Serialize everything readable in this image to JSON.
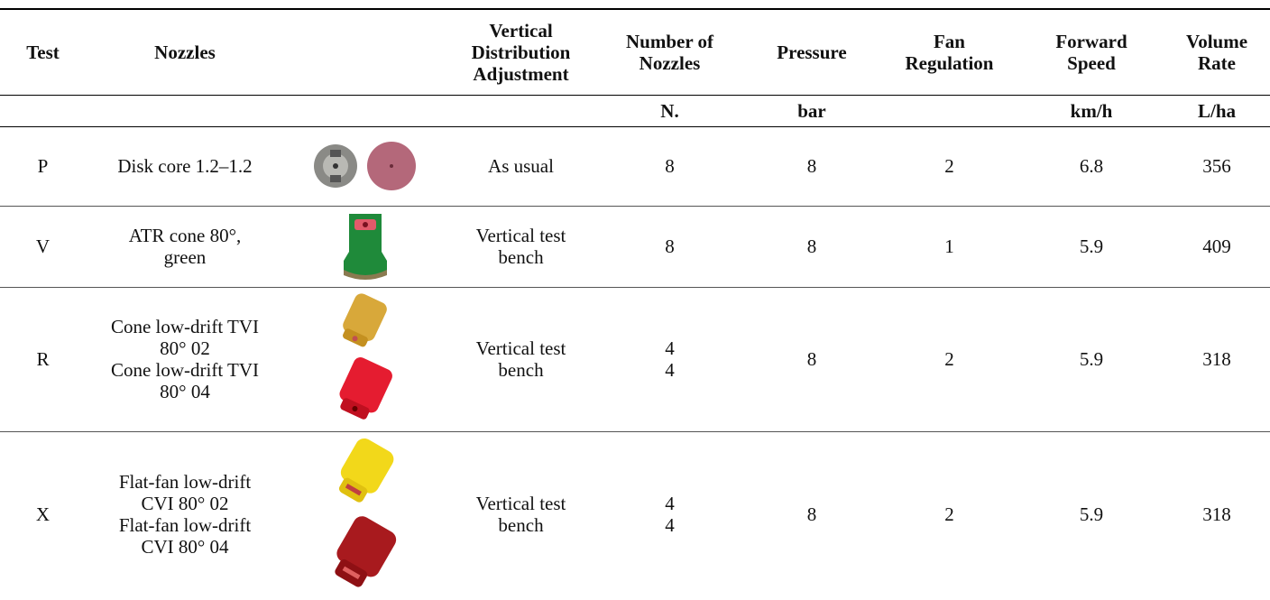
{
  "table": {
    "columns": [
      {
        "header": [
          "Test"
        ]
      },
      {
        "header": [
          "Nozzles"
        ]
      },
      {
        "header": [
          "Vertical",
          "Distribution",
          "Adjustment"
        ]
      },
      {
        "header": [
          "Number of",
          "Nozzles"
        ],
        "unit": "N."
      },
      {
        "header": [
          "Pressure"
        ],
        "unit": "bar"
      },
      {
        "header": [
          "Fan",
          "Regulation"
        ]
      },
      {
        "header": [
          "Forward",
          "Speed"
        ],
        "unit": "km/h"
      },
      {
        "header": [
          "Volume",
          "Rate"
        ],
        "unit": "L/ha"
      }
    ],
    "rows": [
      {
        "test": "P",
        "nozzles": [
          "Disk core 1.2–1.2"
        ],
        "adjustment": [
          "As usual"
        ],
        "number": [
          8
        ],
        "pressure": 8,
        "fan": 2,
        "speed": 6.8,
        "volume": 356
      },
      {
        "test": "V",
        "nozzles": [
          "ATR cone 80°,",
          "green"
        ],
        "adjustment": [
          "Vertical test",
          "bench"
        ],
        "number": [
          8
        ],
        "pressure": 8,
        "fan": 1,
        "speed": 5.9,
        "volume": 409
      },
      {
        "test": "R",
        "nozzles": [
          "Cone low-drift TVI",
          "80° 02",
          "Cone low-drift TVI",
          "80° 04"
        ],
        "adjustment": [
          "Vertical test",
          "bench"
        ],
        "number": [
          4,
          4
        ],
        "pressure": 8,
        "fan": 2,
        "speed": 5.9,
        "volume": 318
      },
      {
        "test": "X",
        "nozzles": [
          "Flat-fan low-drift",
          "CVI 80° 02",
          "Flat-fan low-drift",
          "CVI 80° 04"
        ],
        "adjustment": [
          "Vertical test",
          "bench"
        ],
        "number": [
          4,
          4
        ],
        "pressure": 8,
        "fan": 2,
        "speed": 5.9,
        "volume": 318
      }
    ]
  }
}
